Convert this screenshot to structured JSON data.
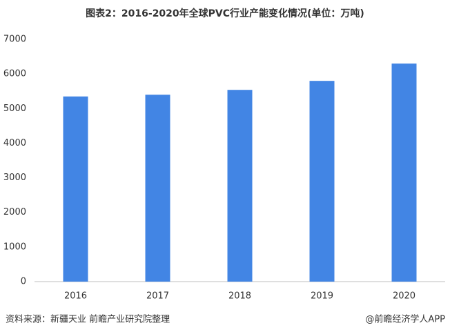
{
  "chart_data": {
    "type": "bar",
    "title": "图表2：2016-2020年全球PVC行业产能变化情况(单位：万吨)",
    "categories": [
      "2016",
      "2017",
      "2018",
      "2019",
      "2020"
    ],
    "values": [
      5350,
      5400,
      5540,
      5800,
      6300
    ],
    "color": "#4285e4",
    "ylim": [
      0,
      7000
    ],
    "yticks": [
      0,
      1000,
      2000,
      3000,
      4000,
      5000,
      6000,
      7000
    ],
    "grid": false,
    "source": "资料来源：新疆天业 前瞻产业研究院整理",
    "credit": "@前瞻经济学人APP"
  }
}
